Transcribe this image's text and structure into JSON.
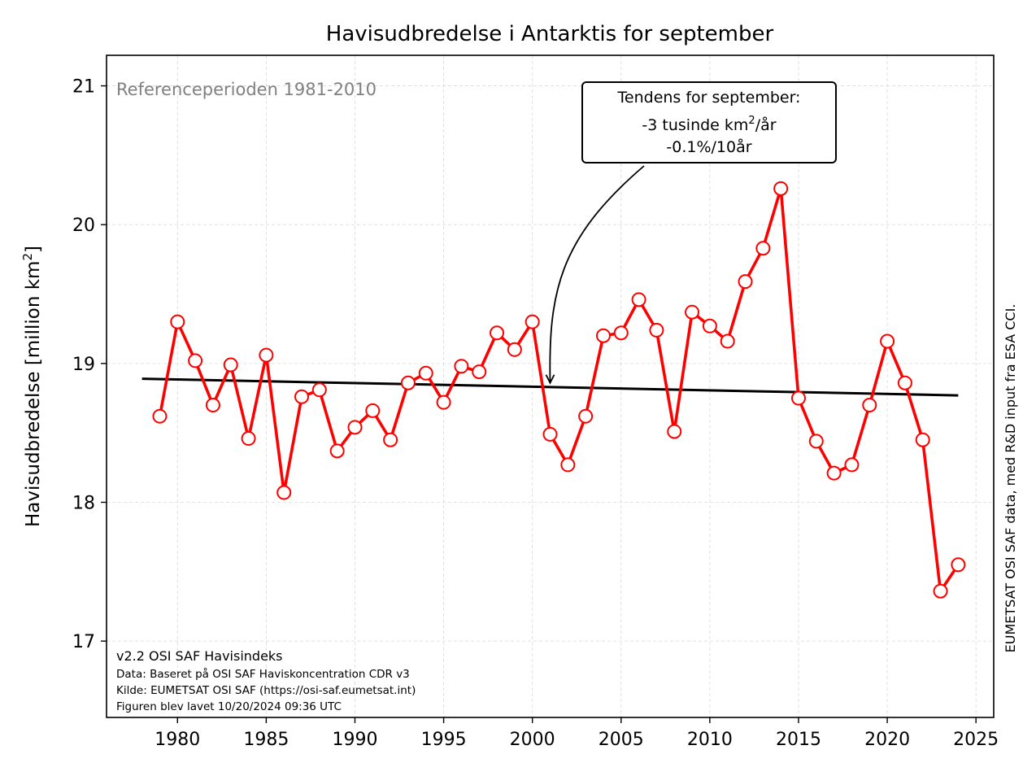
{
  "chart_data": {
    "type": "line",
    "title": "Havisudbredelse i Antarktis for september",
    "ylabel_main": "Havisudbredelse [million km",
    "ylabel_sup": "2",
    "ylabel_end": "]",
    "xlabel": "",
    "xlim": [
      1976,
      2026
    ],
    "ylim": [
      16.45,
      21.22
    ],
    "xticks": [
      1980,
      1985,
      1990,
      1995,
      2000,
      2005,
      2010,
      2015,
      2020,
      2025
    ],
    "yticks": [
      17,
      18,
      19,
      20,
      21
    ],
    "grid": true,
    "series": [
      {
        "color": "#ff0000",
        "x": [
          1979,
          1980,
          1981,
          1982,
          1983,
          1984,
          1985,
          1986,
          1987,
          1988,
          1989,
          1990,
          1991,
          1992,
          1993,
          1994,
          1995,
          1996,
          1997,
          1998,
          1999,
          2000,
          2001,
          2002,
          2003,
          2004,
          2005,
          2006,
          2007,
          2008,
          2009,
          2010,
          2011,
          2012,
          2013,
          2014,
          2015,
          2016,
          2017,
          2018,
          2019,
          2020,
          2021,
          2022,
          2023,
          2024
        ],
        "values": [
          18.62,
          19.3,
          19.02,
          18.7,
          18.99,
          18.46,
          19.06,
          18.07,
          18.76,
          18.81,
          18.37,
          18.54,
          18.66,
          18.45,
          18.86,
          18.93,
          18.72,
          18.98,
          18.94,
          19.22,
          19.1,
          19.3,
          18.49,
          18.27,
          18.62,
          19.2,
          19.22,
          19.46,
          19.24,
          18.51,
          19.37,
          19.27,
          19.16,
          19.59,
          19.83,
          20.26,
          18.75,
          18.44,
          18.21,
          18.27,
          18.7,
          19.16,
          18.86,
          18.45,
          17.36,
          17.55
        ]
      }
    ],
    "trend": {
      "color": "#000000",
      "x": [
        1978,
        2024
      ],
      "values": [
        18.89,
        18.77
      ]
    }
  },
  "reference_period": "Referenceperioden 1981-2010",
  "annotation": {
    "line1": "Tendens for september:",
    "line2_main": "-3 tusinde km",
    "line2_sup": "2",
    "line2_end": "/år",
    "line3": "-0.1%/10år",
    "arrow_target_x": 2001,
    "arrow_target_y": 18.86
  },
  "footer": {
    "version": "v2.2 OSI SAF Havisindeks",
    "data": "Data: Baseret på OSI SAF Haviskoncentration CDR v3",
    "source": "Kilde: EUMETSAT OSI SAF (https://osi-saf.eumetsat.int)",
    "created": "Figuren blev lavet 10/20/2024 09:36 UTC"
  },
  "side_note": "EUMETSAT OSI SAF data, med R&D input fra ESA CCI."
}
